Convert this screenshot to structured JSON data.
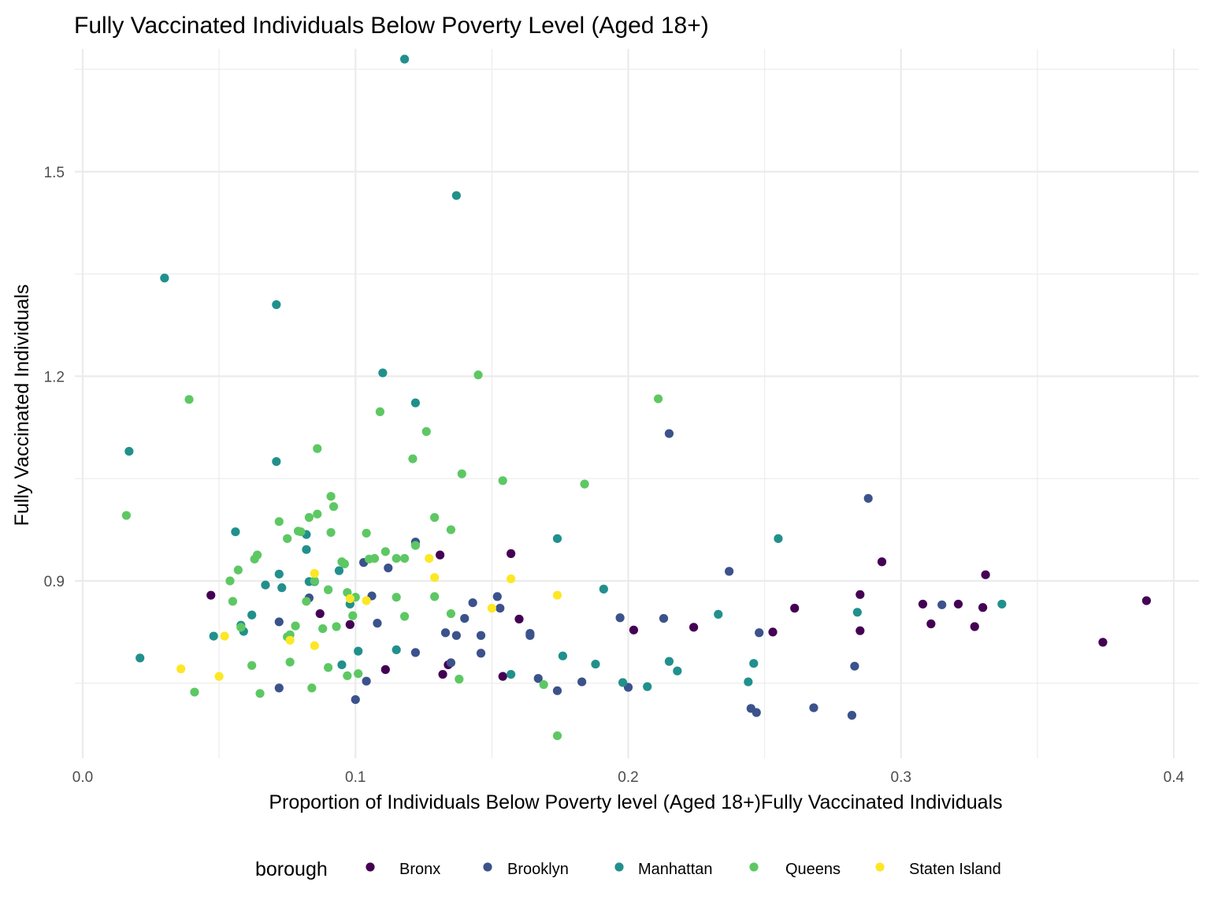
{
  "chart_data": {
    "type": "scatter",
    "title": "Fully Vaccinated Individuals Below Poverty Level (Aged 18+)",
    "xlabel": "Proportion of Individuals Below Poverty level (Aged 18+)Fully Vaccinated Individuals",
    "ylabel": "Fully Vaccinated Individuals",
    "xlim": [
      0.0,
      0.4
    ],
    "ylim": [
      0.64,
      1.68
    ],
    "x_ticks": [
      0.0,
      0.1,
      0.2,
      0.3,
      0.4
    ],
    "x_tick_labels": [
      "0.0",
      "0.1",
      "0.2",
      "0.3",
      "0.4"
    ],
    "y_ticks": [
      0.9,
      1.2,
      1.5
    ],
    "y_tick_labels": [
      "0.9",
      "1.2",
      "1.5"
    ],
    "grid": true,
    "legend": {
      "title": "borough",
      "position": "bottom",
      "entries": [
        "Bronx",
        "Brooklyn",
        "Manhattan",
        "Queens",
        "Staten Island"
      ]
    },
    "colors": {
      "Bronx": "#440154",
      "Brooklyn": "#3b528b",
      "Manhattan": "#21908c",
      "Queens": "#5dc863",
      "Staten Island": "#fde725"
    },
    "series": [
      {
        "name": "Bronx",
        "color": "#440154",
        "x": [
          0.047,
          0.087,
          0.098,
          0.111,
          0.132,
          0.134,
          0.131,
          0.154,
          0.157,
          0.16,
          0.202,
          0.224,
          0.253,
          0.261,
          0.285,
          0.285,
          0.293,
          0.308,
          0.311,
          0.321,
          0.327,
          0.33,
          0.331,
          0.374,
          0.39
        ],
        "y": [
          0.879,
          0.852,
          0.836,
          0.77,
          0.763,
          0.777,
          0.938,
          0.76,
          0.94,
          0.844,
          0.828,
          0.832,
          0.825,
          0.86,
          0.88,
          0.827,
          0.928,
          0.866,
          0.837,
          0.866,
          0.833,
          0.861,
          0.909,
          0.81,
          0.871
        ]
      },
      {
        "name": "Brooklyn",
        "color": "#3b528b",
        "x": [
          0.072,
          0.072,
          0.083,
          0.1,
          0.103,
          0.104,
          0.106,
          0.108,
          0.112,
          0.122,
          0.122,
          0.133,
          0.135,
          0.137,
          0.14,
          0.143,
          0.146,
          0.146,
          0.152,
          0.153,
          0.164,
          0.164,
          0.167,
          0.174,
          0.183,
          0.197,
          0.2,
          0.213,
          0.215,
          0.237,
          0.245,
          0.247,
          0.248,
          0.268,
          0.282,
          0.283,
          0.288,
          0.315
        ],
        "y": [
          0.84,
          0.743,
          0.875,
          0.726,
          0.927,
          0.753,
          0.878,
          0.838,
          0.919,
          0.957,
          0.795,
          0.824,
          0.78,
          0.82,
          0.845,
          0.868,
          0.82,
          0.794,
          0.877,
          0.86,
          0.823,
          0.82,
          0.757,
          0.739,
          0.752,
          0.846,
          0.744,
          0.845,
          1.116,
          0.914,
          0.713,
          0.707,
          0.824,
          0.714,
          0.703,
          0.775,
          1.021,
          0.865
        ]
      },
      {
        "name": "Manhattan",
        "color": "#21908c",
        "x": [
          0.017,
          0.021,
          0.03,
          0.048,
          0.056,
          0.058,
          0.059,
          0.062,
          0.067,
          0.071,
          0.071,
          0.072,
          0.073,
          0.082,
          0.082,
          0.083,
          0.085,
          0.094,
          0.095,
          0.098,
          0.101,
          0.11,
          0.115,
          0.118,
          0.122,
          0.137,
          0.157,
          0.174,
          0.176,
          0.188,
          0.191,
          0.198,
          0.207,
          0.215,
          0.218,
          0.233,
          0.244,
          0.246,
          0.255,
          0.284,
          0.337
        ],
        "y": [
          1.09,
          0.787,
          1.344,
          0.819,
          0.972,
          0.835,
          0.826,
          0.85,
          0.894,
          1.305,
          1.075,
          0.91,
          0.89,
          0.946,
          0.968,
          0.899,
          0.899,
          0.915,
          0.777,
          0.866,
          0.797,
          1.205,
          0.799,
          1.665,
          1.161,
          1.465,
          0.763,
          0.962,
          0.79,
          0.778,
          0.888,
          0.751,
          0.745,
          0.782,
          0.768,
          0.851,
          0.752,
          0.779,
          0.962,
          0.854,
          0.866
        ]
      },
      {
        "name": "Queens",
        "color": "#5dc863",
        "x": [
          0.016,
          0.039,
          0.041,
          0.054,
          0.055,
          0.057,
          0.058,
          0.062,
          0.063,
          0.064,
          0.065,
          0.072,
          0.075,
          0.075,
          0.076,
          0.076,
          0.078,
          0.079,
          0.08,
          0.082,
          0.083,
          0.084,
          0.085,
          0.086,
          0.086,
          0.088,
          0.09,
          0.09,
          0.091,
          0.091,
          0.092,
          0.093,
          0.095,
          0.096,
          0.097,
          0.097,
          0.099,
          0.1,
          0.101,
          0.104,
          0.105,
          0.107,
          0.109,
          0.111,
          0.115,
          0.115,
          0.118,
          0.118,
          0.121,
          0.122,
          0.126,
          0.129,
          0.129,
          0.135,
          0.135,
          0.138,
          0.139,
          0.145,
          0.154,
          0.169,
          0.174,
          0.184,
          0.211
        ],
        "y": [
          0.996,
          1.166,
          0.737,
          0.9,
          0.87,
          0.916,
          0.832,
          0.776,
          0.932,
          0.938,
          0.735,
          0.987,
          0.962,
          0.818,
          0.781,
          0.821,
          0.834,
          0.973,
          0.972,
          0.87,
          0.993,
          0.743,
          0.9,
          0.998,
          1.094,
          0.83,
          0.773,
          0.887,
          1.024,
          0.971,
          1.009,
          0.833,
          0.928,
          0.925,
          0.883,
          0.761,
          0.849,
          0.876,
          0.764,
          0.97,
          0.932,
          0.933,
          1.148,
          0.943,
          0.933,
          0.876,
          0.848,
          0.933,
          1.079,
          0.952,
          1.119,
          0.993,
          0.877,
          0.975,
          0.852,
          0.756,
          1.057,
          1.202,
          1.047,
          0.748,
          0.673,
          1.042,
          1.167
        ]
      },
      {
        "name": "Staten Island",
        "color": "#fde725",
        "x": [
          0.036,
          0.05,
          0.052,
          0.076,
          0.085,
          0.085,
          0.098,
          0.104,
          0.127,
          0.129,
          0.15,
          0.157,
          0.174
        ],
        "y": [
          0.771,
          0.76,
          0.819,
          0.813,
          0.805,
          0.911,
          0.874,
          0.871,
          0.933,
          0.905,
          0.86,
          0.903,
          0.879
        ]
      }
    ]
  }
}
